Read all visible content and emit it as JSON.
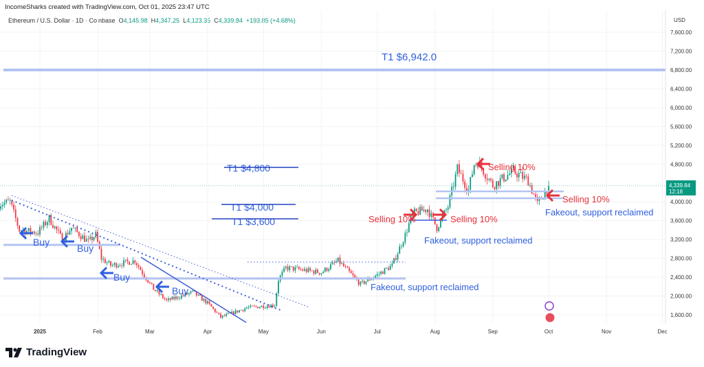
{
  "header": {
    "credit": "IncomeSharks created with TradingView.com, Oct 01, 2025 23:47 UTC",
    "symbol": "Ethereum / U.S. Dollar · 1D · Coinbase",
    "o_label": "O",
    "o": "4,145.98",
    "h_label": "H",
    "h": "4,347.25",
    "l_label": "L",
    "l": "4,123.35",
    "c_label": "C",
    "c": "4,339.84",
    "change": "+193.85 (+4.68%)"
  },
  "brand": "TradingView",
  "colors": {
    "up": "#089981",
    "down": "#f23645",
    "annot_blue": "#2f5fe0",
    "annot_red": "#e8303a",
    "line_blue": "#b3c3f2"
  },
  "chart_data": {
    "type": "candlestick",
    "title": "Ethereum / U.S. Dollar · 1D · Coinbase",
    "currency": "USD",
    "ylim": [
      1400,
      7900
    ],
    "y_ticks": [
      "7,600.00",
      "7,200.00",
      "6,800.00",
      "6,400.00",
      "6,000.00",
      "5,600.00",
      "5,200.00",
      "4,800.00",
      "4,000.00",
      "3,600.00",
      "3,200.00",
      "2,800.00",
      "2,400.00",
      "2,000.00",
      "1,600.00"
    ],
    "y_tick_values": [
      7600,
      7200,
      6800,
      6400,
      6000,
      5600,
      5200,
      4800,
      4000,
      3600,
      3200,
      2800,
      2400,
      2000,
      1600
    ],
    "x_ticks": [
      {
        "label": "2025",
        "day": 0
      },
      {
        "label": "Feb",
        "day": 31
      },
      {
        "label": "Mar",
        "day": 59
      },
      {
        "label": "Apr",
        "day": 90
      },
      {
        "label": "May",
        "day": 120
      },
      {
        "label": "Jun",
        "day": 151
      },
      {
        "label": "Jul",
        "day": 181
      },
      {
        "label": "Aug",
        "day": 212
      },
      {
        "label": "Sep",
        "day": 243
      },
      {
        "label": "Oct",
        "day": 273
      },
      {
        "label": "Nov",
        "day": 304
      },
      {
        "label": "Dec",
        "day": 334
      }
    ],
    "approx_close_path": {
      "day_since_2025_01_01": [
        -22,
        -16,
        -11,
        -1,
        5,
        12,
        17,
        26,
        30,
        33,
        38,
        51,
        55,
        61,
        68,
        82,
        90,
        97,
        111,
        126,
        128,
        132,
        151,
        160,
        172,
        181,
        189,
        196,
        200,
        208,
        213,
        219,
        224,
        230,
        233,
        235,
        243,
        254,
        262,
        267,
        273
      ],
      "close": [
        3950,
        4000,
        3400,
        3350,
        3650,
        3200,
        3450,
        3150,
        3300,
        2800,
        2650,
        2750,
        2500,
        2150,
        1900,
        2080,
        1850,
        1550,
        1750,
        1810,
        2350,
        2600,
        2500,
        2750,
        2250,
        2450,
        2650,
        3300,
        3750,
        3850,
        3450,
        3900,
        4700,
        4250,
        4800,
        4850,
        4350,
        4650,
        4450,
        3950,
        4339.84
      ]
    },
    "last_price": "4,339.84",
    "countdown": "12:18",
    "annotations": {
      "target_main": "T1   $6,942.0",
      "targets_struck": [
        "T1 $4,800",
        "T1 $4,000",
        "T1 $3,600"
      ],
      "buy": [
        "Buy",
        "Buy",
        "Buy",
        "Buy"
      ],
      "selling": [
        "Selling 10%",
        "Selling 10%",
        "Selling 10%",
        "Selling 10%"
      ],
      "fakeout": [
        "Fakeout, support reclaimed",
        "Fakeout, support reclaimed",
        "Fakeout, support reclaimed"
      ]
    }
  }
}
